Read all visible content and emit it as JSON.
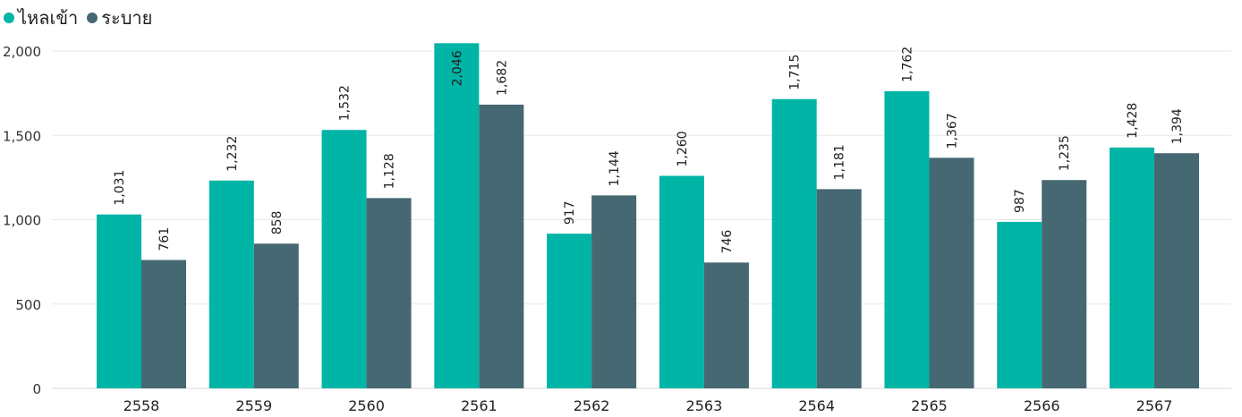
{
  "chart_data": {
    "type": "bar",
    "title": "",
    "xlabel": "",
    "ylabel": "",
    "categories": [
      "2558",
      "2559",
      "2560",
      "2561",
      "2562",
      "2563",
      "2564",
      "2565",
      "2566",
      "2567"
    ],
    "series": [
      {
        "name": "ไหลเข้า",
        "color": "#00B4A6",
        "values": [
          1031,
          1232,
          1532,
          2046,
          917,
          1260,
          1715,
          1762,
          987,
          1428
        ],
        "labels": [
          "1,031",
          "1,232",
          "1,532",
          "2,046",
          "917",
          "1,260",
          "1,715",
          "1,762",
          "987",
          "1,428"
        ]
      },
      {
        "name": "ระบาย",
        "color": "#456872",
        "values": [
          761,
          858,
          1128,
          1682,
          1144,
          746,
          1181,
          1367,
          1235,
          1394
        ],
        "labels": [
          "761",
          "858",
          "1,128",
          "1,682",
          "1,144",
          "746",
          "1,181",
          "1,367",
          "1,235",
          "1,394"
        ]
      }
    ],
    "ylim": [
      0,
      2000
    ],
    "yticks": [
      0,
      500,
      1000,
      1500,
      2000
    ],
    "ytick_labels": [
      "0",
      "500",
      "1,000",
      "1,500",
      "2,000"
    ],
    "grid": true,
    "legend_position": "top-left"
  }
}
